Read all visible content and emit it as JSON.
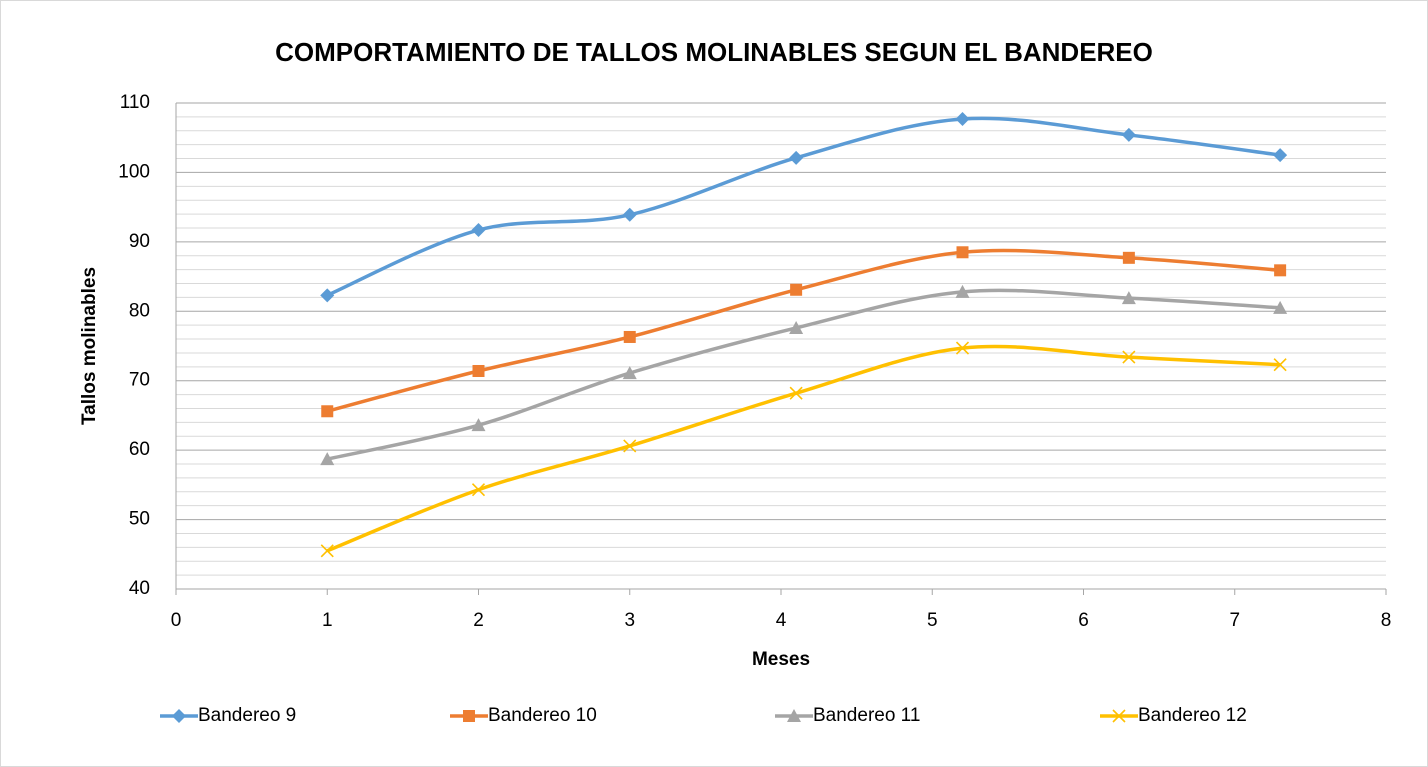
{
  "chart_data": {
    "type": "scatter_smooth",
    "title": "COMPORTAMIENTO DE TALLOS MOLINABLES SEGUN EL BANDEREO",
    "x_label": "Meses",
    "y_label": "Tallos molinables",
    "x": [
      1,
      2,
      3,
      4.1,
      5.2,
      6.3,
      7.3
    ],
    "series": [
      {
        "name": "Bandereo 9",
        "color": "#5b9bd5",
        "marker": "diamond",
        "values": [
          82.3,
          91.7,
          93.9,
          102.1,
          107.7,
          105.4,
          102.5
        ]
      },
      {
        "name": "Bandereo 10",
        "color": "#ed7d31",
        "marker": "square",
        "values": [
          65.6,
          71.4,
          76.3,
          83.1,
          88.5,
          87.7,
          85.9
        ]
      },
      {
        "name": "Bandereo 11",
        "color": "#a5a5a5",
        "marker": "triangle",
        "values": [
          58.7,
          63.6,
          71.1,
          77.6,
          82.8,
          81.9,
          80.5
        ]
      },
      {
        "name": "Bandereo 12",
        "color": "#ffc000",
        "marker": "x",
        "values": [
          45.5,
          54.3,
          60.6,
          68.2,
          74.7,
          73.4,
          72.3
        ]
      }
    ],
    "xlim": [
      0,
      8
    ],
    "xticks": [
      0,
      1,
      2,
      3,
      4,
      5,
      6,
      7,
      8
    ],
    "ylim": [
      40,
      110
    ],
    "yticks": [
      40,
      50,
      60,
      70,
      80,
      90,
      100,
      110
    ],
    "grid": true,
    "minor_grid": true,
    "legend": "bottom"
  }
}
